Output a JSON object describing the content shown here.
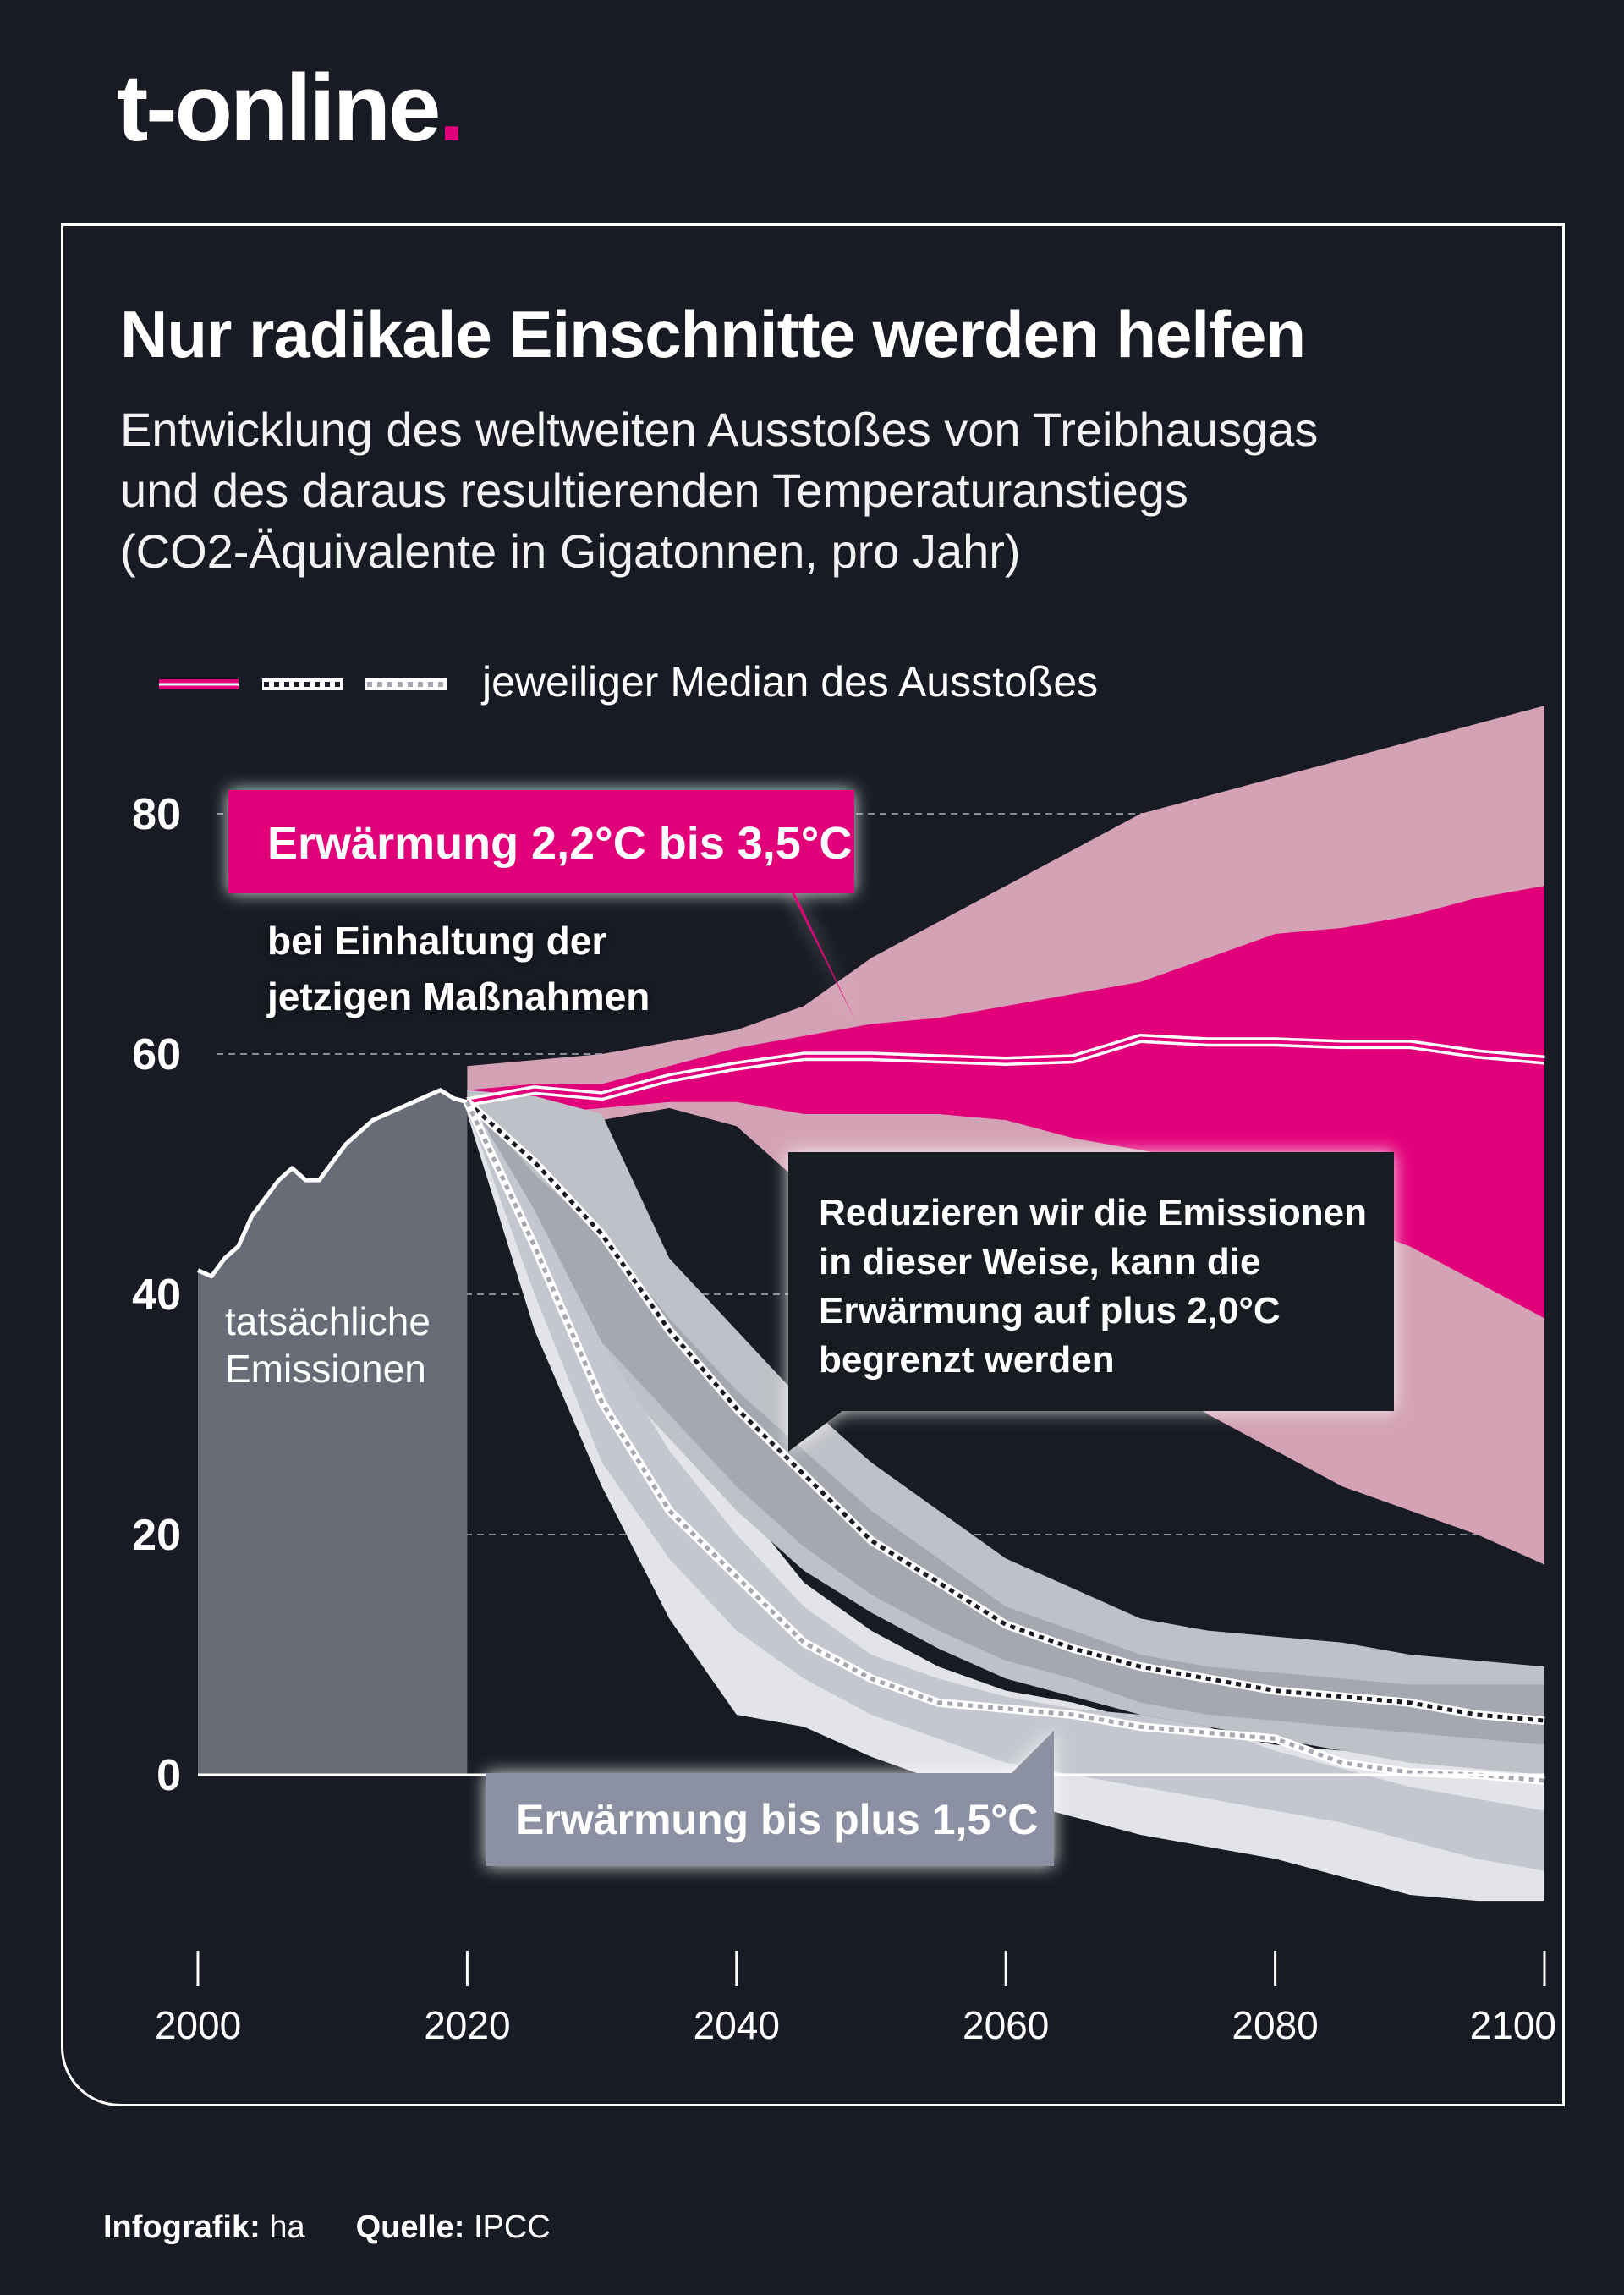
{
  "header": {
    "logo_text": "t-online",
    "logo_dot": ".",
    "accent_color": "#e2007a"
  },
  "title": "Nur radikale Einschnitte werden helfen",
  "subtitle_lines": [
    "Entwicklung des weltweiten Ausstoßes von Treibhausgas",
    "und des daraus resultierenden Temperaturanstiegs",
    "(CO2-Äquivalente in Gigatonnen, pro Jahr)"
  ],
  "legend_label": "jeweiliger Median des Ausstoßes",
  "footer": {
    "credit_label": "Infografik:",
    "credit_value": "ha",
    "source_label": "Quelle:",
    "source_value": "IPCC"
  },
  "chart_data": {
    "type": "area",
    "xlim": [
      2000,
      2100
    ],
    "ylim": [
      -12,
      88
    ],
    "x_ticks": [
      2000,
      2020,
      2040,
      2060,
      2080,
      2100
    ],
    "y_ticks": [
      0,
      20,
      40,
      60,
      80
    ],
    "grid": "horizontal-dashed",
    "colors": {
      "historical": "#686c76",
      "current_outer": "#d3a3b5",
      "current_inner": "#e2007a",
      "two_outer": "#bfc1c8",
      "two_inner": "#a5a8b1",
      "onefive_outer": "#e2e4ea",
      "onefive_inner": "#c4c7cf"
    },
    "historical": {
      "label": "tatsächliche Emissionen",
      "x": [
        2000,
        2001,
        2002,
        2003,
        2004,
        2005,
        2006,
        2007,
        2008,
        2009,
        2010,
        2011,
        2012,
        2013,
        2014,
        2015,
        2016,
        2017,
        2018,
        2019
      ],
      "y": [
        42,
        41.5,
        43,
        44,
        46.5,
        48,
        49.5,
        50.5,
        49.5,
        49.5,
        51,
        52.5,
        53.5,
        54.5,
        55,
        55.5,
        56,
        56.5,
        57,
        56.3
      ]
    },
    "annotations": {
      "current_title": "Erwärmung 2,2°C bis 3,5°C",
      "current_text": [
        "bei Einhaltung der",
        "jetzigen Maßnahmen"
      ],
      "two_text": [
        "Reduzieren wir die Emissionen",
        "in dieser Weise, kann die",
        "Erwärmung auf plus 2,0°C",
        "begrenzt werden"
      ],
      "onefive_title": "Erwärmung bis plus 1,5°C"
    },
    "scenarios": [
      {
        "id": "current",
        "style": "solid",
        "x": [
          2020,
          2025,
          2030,
          2035,
          2040,
          2045,
          2050,
          2055,
          2060,
          2065,
          2070,
          2075,
          2080,
          2085,
          2090,
          2095,
          2100
        ],
        "median": [
          56,
          57,
          56.5,
          58,
          59,
          59.8,
          59.8,
          59.6,
          59.4,
          59.6,
          61.3,
          61,
          61,
          60.8,
          60.8,
          60,
          59.5
        ],
        "outer_upper": [
          59,
          59.5,
          60,
          61,
          62,
          64,
          68,
          71,
          74,
          77,
          80,
          81.5,
          83,
          84.5,
          86,
          87.5,
          89
        ],
        "outer_lower": [
          55,
          54.5,
          54.5,
          55.5,
          54,
          49,
          45,
          42,
          40,
          37,
          34,
          30,
          27,
          24,
          22,
          20,
          17.5
        ],
        "inner_upper": [
          57,
          57.5,
          57.5,
          59,
          60.5,
          61.5,
          62.5,
          63,
          64,
          65,
          66,
          68,
          70,
          70.5,
          71.5,
          73,
          74
        ],
        "inner_lower": [
          55.5,
          55,
          55.5,
          56,
          56,
          55,
          55,
          55,
          54.5,
          53,
          52,
          51,
          49,
          46,
          44,
          41,
          38
        ]
      },
      {
        "id": "two_degrees",
        "style": "dotted-dark",
        "x": [
          2020,
          2025,
          2030,
          2035,
          2040,
          2045,
          2050,
          2055,
          2060,
          2065,
          2070,
          2075,
          2080,
          2085,
          2090,
          2095,
          2100
        ],
        "median": [
          56,
          51,
          45,
          37,
          30.5,
          25,
          19.5,
          16,
          12.5,
          10.5,
          9,
          8,
          7,
          6.5,
          6,
          5,
          4.5
        ],
        "outer_upper": [
          57,
          56.5,
          55,
          43,
          37,
          31,
          26,
          22,
          18,
          15.5,
          13,
          12,
          11.5,
          11,
          10,
          9.5,
          9
        ],
        "outer_lower": [
          55,
          43,
          34,
          28,
          22,
          17,
          13.5,
          10.5,
          8,
          6.5,
          5,
          4,
          3,
          2,
          1,
          0.5,
          0
        ],
        "inner_upper": [
          56.5,
          50,
          45,
          38,
          32,
          27,
          22,
          18,
          14,
          12,
          10,
          9,
          8.5,
          8,
          7.5,
          7.5,
          7.5
        ],
        "inner_lower": [
          55.5,
          45,
          36,
          30,
          24,
          19,
          15,
          12,
          9.5,
          8,
          6,
          5,
          4.5,
          4,
          3.5,
          3,
          2.5
        ]
      },
      {
        "id": "one_point_five",
        "style": "dotted-light",
        "x": [
          2020,
          2025,
          2030,
          2035,
          2040,
          2045,
          2050,
          2055,
          2060,
          2065,
          2070,
          2075,
          2080,
          2085,
          2090,
          2095,
          2100
        ],
        "median": [
          56,
          44,
          31,
          22,
          16.5,
          11,
          8,
          6,
          5.5,
          5,
          4,
          3.5,
          3,
          1,
          0.2,
          0,
          -0.5
        ],
        "outer_upper": [
          57,
          50,
          40,
          30,
          23,
          16,
          12,
          9,
          7,
          6,
          4.5,
          3.5,
          2.5,
          2,
          1.5,
          1,
          0.5
        ],
        "outer_lower": [
          55,
          37,
          24,
          13,
          5,
          4,
          1.5,
          -0.5,
          -2,
          -3.5,
          -5,
          -6,
          -7,
          -8.5,
          -10,
          -10.5,
          -10.5
        ],
        "inner_upper": [
          56.5,
          47,
          36,
          27,
          20,
          14,
          10,
          8,
          6.5,
          5.5,
          5,
          4,
          2,
          0.5,
          -1,
          -2,
          -3
        ],
        "inner_lower": [
          55.5,
          40,
          26,
          18,
          12,
          8,
          5,
          3,
          1,
          0,
          -1,
          -2,
          -3,
          -4,
          -5.5,
          -7,
          -8
        ]
      }
    ]
  }
}
